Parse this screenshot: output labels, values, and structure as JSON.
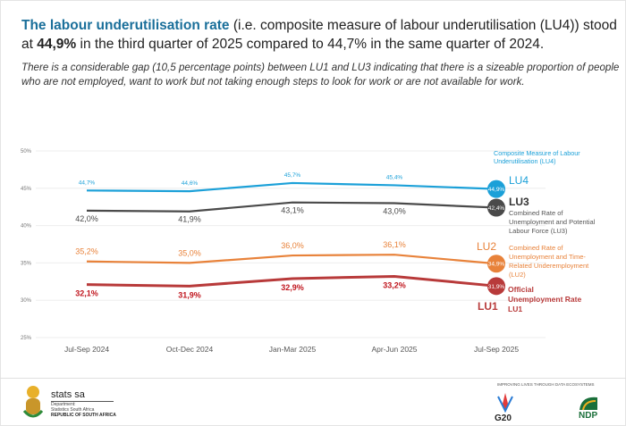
{
  "header": {
    "headline_bold": "The labour underutilisation rate",
    "headline_rest1": " (i.e. composite measure of labour underutilisation (LU4)) stood at ",
    "headline_value": "44,9%",
    "headline_rest2": " in the third quarter of 2025 compared to 44,7% in the same quarter of 2024.",
    "subtext": "There is a considerable gap (10,5 percentage points) between LU1 and LU3 indicating that there is a sizeable proportion of people who are not employed, want to work but not taking enough steps to look for work or are not available for work."
  },
  "chart_data": {
    "type": "line",
    "categories": [
      "Jul-Sep 2024",
      "Oct-Dec 2024",
      "Jan-Mar 2025",
      "Apr-Jun 2025",
      "Jul-Sep 2025"
    ],
    "ylim": [
      25,
      50
    ],
    "yticks": [
      "25%",
      "30%",
      "35%",
      "40%",
      "45%",
      "50%"
    ],
    "grid": true,
    "series": [
      {
        "name": "LU4",
        "desc": [
          "Composite Measure of Labour",
          "Underutilisation (LU4)"
        ],
        "color": "#1ba0d8",
        "values": [
          44.7,
          44.6,
          45.7,
          45.4,
          44.9
        ],
        "labels": [
          "44,7%",
          "44,6%",
          "45,7%",
          "45,4%",
          "44,9%"
        ]
      },
      {
        "name": "LU3",
        "desc": [
          "Combined Rate of",
          "Unemployment and Potential",
          "Labour Force (LU3)"
        ],
        "color": "#4a4a4a",
        "values": [
          42.0,
          41.9,
          43.1,
          43.0,
          42.4
        ],
        "labels": [
          "42,0%",
          "41,9%",
          "43,1%",
          "43,0%",
          "42,4%"
        ]
      },
      {
        "name": "LU2",
        "desc": [
          "Combined Rate of",
          "Unemployment and Time-",
          "Related Underemployment",
          "(LU2)"
        ],
        "color": "#e8823a",
        "values": [
          35.2,
          35.0,
          36.0,
          36.1,
          34.9
        ],
        "labels": [
          "35,2%",
          "35,0%",
          "36,0%",
          "36,1%",
          "34,9%"
        ]
      },
      {
        "name": "LU1",
        "desc": [
          "Official",
          "Unemployment Rate",
          "LU1"
        ],
        "color": "#b83a3a",
        "labelcolor": "#c0161e",
        "values": [
          32.1,
          31.9,
          32.9,
          33.2,
          31.9
        ],
        "labels": [
          "32,1%",
          "31,9%",
          "32,9%",
          "33,2%",
          "31,9%"
        ]
      }
    ]
  },
  "footer": {
    "brand": "stats sa",
    "dept1": "Department:",
    "dept2": "Statistics South Africa",
    "country": "REPUBLIC OF SOUTH AFRICA",
    "tagline": "IMPROVING LIVES THROUGH DATA ECOSYSTEMS",
    "g20": "G20",
    "ndp": "NDP"
  }
}
